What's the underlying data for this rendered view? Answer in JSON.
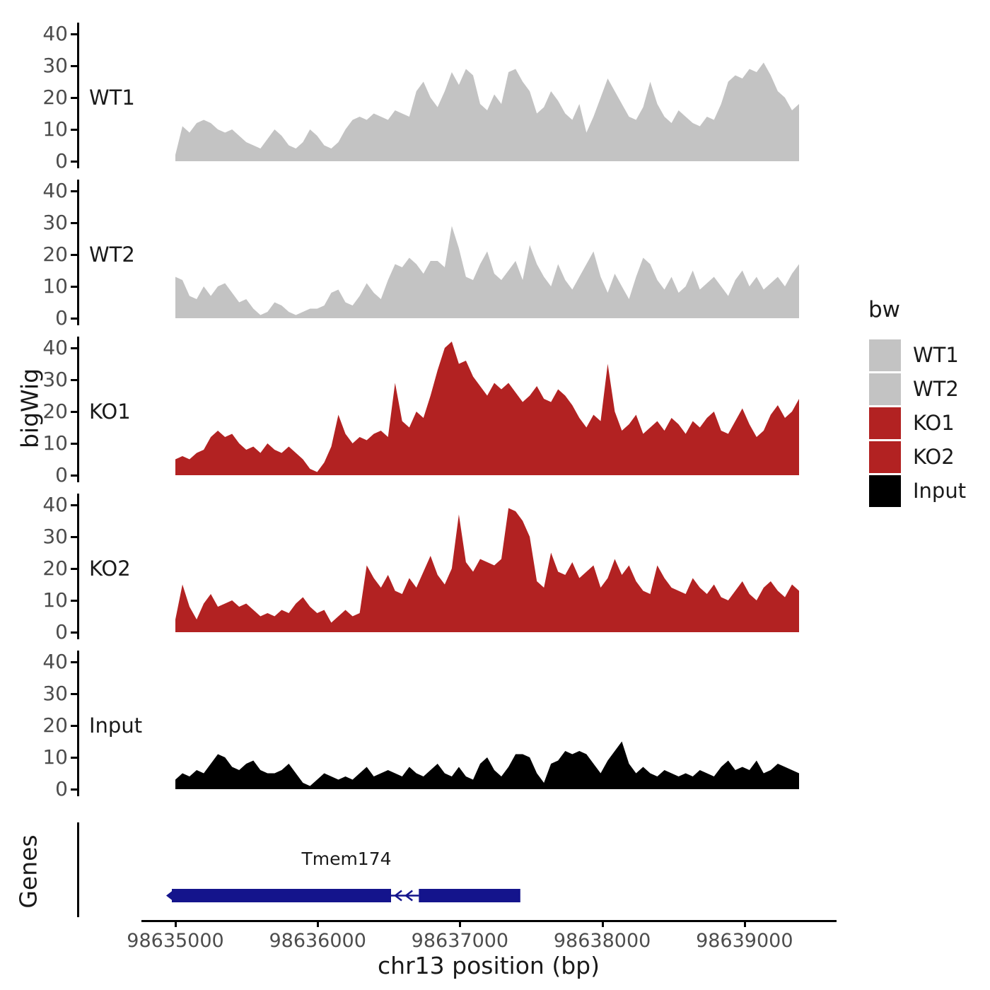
{
  "figure": {
    "background": "#ffffff",
    "axis_color": "#000000",
    "tick_label_color": "#4d4d4d",
    "text_color": "#1a1a1a"
  },
  "chart_data": {
    "type": "area",
    "ylabel": "bigWig",
    "x": {
      "title": "chr13 position (bp)",
      "start": 98635000,
      "step": 50,
      "ticks": [
        98635000,
        98636000,
        98637000,
        98638000,
        98639000
      ],
      "range_shown": [
        98634760,
        98639640
      ]
    },
    "y": {
      "ticks": [
        0,
        10,
        20,
        30,
        40
      ],
      "lim": [
        0,
        44
      ]
    },
    "series": [
      {
        "name": "WT1",
        "color": "#c3c3c3",
        "values": [
          2,
          11,
          9,
          12,
          13,
          12,
          10,
          9,
          10,
          8,
          6,
          5,
          4,
          7,
          10,
          8,
          5,
          4,
          6,
          10,
          8,
          5,
          4,
          6,
          10,
          13,
          14,
          13,
          15,
          14,
          13,
          16,
          15,
          14,
          22,
          25,
          20,
          17,
          22,
          28,
          24,
          29,
          27,
          18,
          16,
          21,
          18,
          28,
          29,
          25,
          22,
          15,
          17,
          22,
          19,
          15,
          13,
          18,
          9,
          14,
          20,
          26,
          22,
          18,
          14,
          13,
          17,
          25,
          18,
          14,
          12,
          16,
          14,
          12,
          11,
          14,
          13,
          18,
          25,
          27,
          26,
          29,
          28,
          31,
          27,
          22,
          20,
          16,
          18
        ]
      },
      {
        "name": "WT2",
        "color": "#c3c3c3",
        "values": [
          13,
          12,
          7,
          6,
          10,
          7,
          10,
          11,
          8,
          5,
          6,
          3,
          1,
          2,
          5,
          4,
          2,
          1,
          2,
          3,
          3,
          4,
          8,
          9,
          5,
          4,
          7,
          11,
          8,
          6,
          12,
          17,
          16,
          19,
          17,
          14,
          18,
          18,
          16,
          29,
          22,
          13,
          12,
          17,
          21,
          14,
          12,
          15,
          18,
          12,
          23,
          17,
          13,
          10,
          17,
          12,
          9,
          13,
          17,
          21,
          13,
          8,
          14,
          10,
          6,
          13,
          19,
          17,
          12,
          9,
          13,
          8,
          10,
          15,
          9,
          11,
          13,
          10,
          7,
          12,
          15,
          10,
          13,
          9,
          11,
          13,
          10,
          14,
          17
        ]
      },
      {
        "name": "KO1",
        "color": "#b22222",
        "values": [
          5,
          6,
          5,
          7,
          8,
          12,
          14,
          12,
          13,
          10,
          8,
          9,
          7,
          10,
          8,
          7,
          9,
          7,
          5,
          2,
          1,
          4,
          9,
          19,
          13,
          10,
          12,
          11,
          13,
          14,
          12,
          29,
          17,
          15,
          20,
          18,
          25,
          33,
          40,
          42,
          35,
          36,
          31,
          28,
          25,
          29,
          27,
          29,
          26,
          23,
          25,
          28,
          24,
          23,
          27,
          25,
          22,
          18,
          15,
          19,
          17,
          35,
          20,
          14,
          16,
          19,
          13,
          15,
          17,
          14,
          18,
          16,
          13,
          17,
          15,
          18,
          20,
          14,
          13,
          17,
          21,
          16,
          12,
          14,
          19,
          22,
          18,
          20,
          24
        ]
      },
      {
        "name": "KO2",
        "color": "#b22222",
        "values": [
          4,
          15,
          8,
          4,
          9,
          12,
          8,
          9,
          10,
          8,
          9,
          7,
          5,
          6,
          5,
          7,
          6,
          9,
          11,
          8,
          6,
          7,
          3,
          5,
          7,
          5,
          6,
          21,
          17,
          14,
          18,
          13,
          12,
          17,
          14,
          19,
          24,
          18,
          15,
          20,
          37,
          22,
          19,
          23,
          22,
          21,
          23,
          39,
          38,
          35,
          30,
          16,
          14,
          25,
          19,
          18,
          22,
          17,
          19,
          21,
          14,
          17,
          23,
          18,
          21,
          16,
          13,
          12,
          21,
          17,
          14,
          13,
          12,
          17,
          14,
          12,
          15,
          11,
          10,
          13,
          16,
          12,
          10,
          14,
          16,
          13,
          11,
          15,
          13
        ]
      },
      {
        "name": "Input",
        "color": "#000000",
        "values": [
          3,
          5,
          4,
          6,
          5,
          8,
          11,
          10,
          7,
          6,
          8,
          9,
          6,
          5,
          5,
          6,
          8,
          5,
          2,
          1,
          3,
          5,
          4,
          3,
          4,
          3,
          5,
          7,
          4,
          5,
          6,
          5,
          4,
          7,
          5,
          4,
          6,
          8,
          5,
          4,
          7,
          4,
          3,
          8,
          10,
          6,
          4,
          7,
          11,
          11,
          10,
          5,
          2,
          8,
          9,
          12,
          11,
          12,
          11,
          8,
          5,
          9,
          12,
          15,
          8,
          5,
          7,
          5,
          4,
          6,
          5,
          4,
          5,
          4,
          6,
          5,
          4,
          7,
          9,
          6,
          7,
          6,
          9,
          5,
          6,
          8,
          7,
          6,
          5
        ]
      }
    ],
    "legend": {
      "title": "bw",
      "entries": [
        {
          "label": "WT1",
          "color": "#c3c3c3"
        },
        {
          "label": "WT2",
          "color": "#c3c3c3"
        },
        {
          "label": "KO1",
          "color": "#b22222"
        },
        {
          "label": "KO2",
          "color": "#b22222"
        },
        {
          "label": "Input",
          "color": "#000000"
        }
      ]
    },
    "genes_panel": {
      "label": "Genes",
      "genes": [
        {
          "name": "Tmem174",
          "strand": "-",
          "color": "#14148c",
          "exons_bp": [
            [
              98634975,
              98636516
            ],
            [
              98636711,
              98637424
            ]
          ],
          "intron_arrow_bp": [
            98636556,
            98636631
          ]
        }
      ]
    }
  }
}
